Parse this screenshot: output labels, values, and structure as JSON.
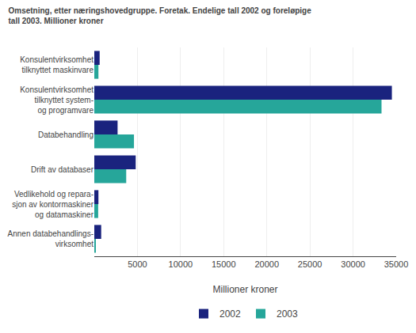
{
  "chart_data": {
    "type": "bar",
    "orientation": "horizontal",
    "title": "Omsetning, etter næringshovedgruppe. Foretak. Endelige tall 2002 og foreløpige\ntall 2003. Millioner kroner",
    "categories": [
      "Konsulentvirksomhet\ntilknyttet maskinvare",
      "Konsulentvirksomhet\ntilknyttet system-\nog programvare",
      "Databehandling",
      "Drift av databaser",
      "Vedlikehold og repara-\nsjon av kontormaskiner\nog datamaskiner",
      "Annen databehandlings-\nvirksomhet"
    ],
    "series": [
      {
        "name": "2002",
        "color": "#1a237e",
        "values": [
          620,
          34500,
          2700,
          4800,
          480,
          800
        ]
      },
      {
        "name": "2003",
        "color": "#26a69a",
        "values": [
          480,
          33300,
          4600,
          3700,
          450,
          100
        ]
      }
    ],
    "xlabel": "Millioner kroner",
    "xlim": [
      0,
      35000
    ],
    "xticks": [
      5000,
      10000,
      15000,
      20000,
      25000,
      30000,
      35000
    ],
    "grid": true,
    "legend": "bottom"
  }
}
